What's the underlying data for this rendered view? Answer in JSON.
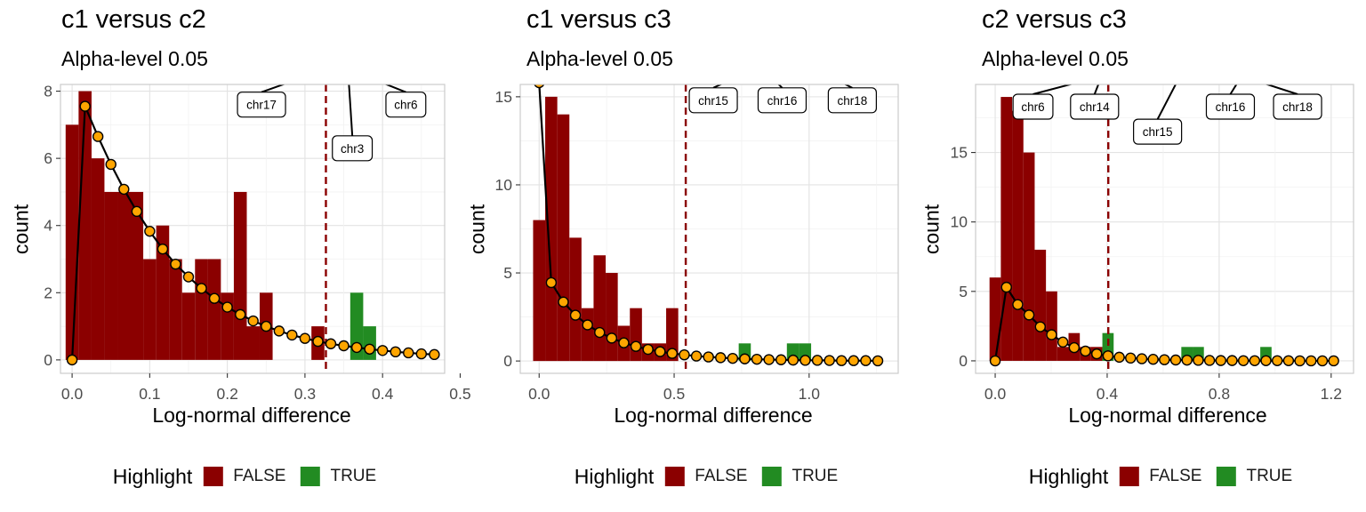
{
  "colors": {
    "false": "#8b0000",
    "true": "#228b22",
    "curve_point": "#ffa500",
    "threshold": "#8b0000"
  },
  "legend": {
    "title": "Highlight",
    "items": [
      {
        "label": "FALSE",
        "color": "#8b0000"
      },
      {
        "label": "TRUE",
        "color": "#228b22"
      }
    ]
  },
  "chart_data": [
    {
      "type": "bar",
      "title": "c1 versus c2",
      "subtitle": "Alpha-level 0.05",
      "xlabel": "Log-normal difference",
      "ylabel": "count",
      "xlim": [
        -0.015,
        0.48
      ],
      "ylim": [
        -0.4,
        8.2
      ],
      "xticks": [
        0,
        0.1,
        0.2,
        0.3,
        0.4,
        0.5
      ],
      "xtick_labels": [
        "0.0",
        "0.1",
        "0.2",
        "0.3",
        "0.4",
        "0.5"
      ],
      "yticks": [
        0,
        2,
        4,
        6,
        8
      ],
      "ytick_labels": [
        "0",
        "2",
        "4",
        "6",
        "8"
      ],
      "threshold": 0.327,
      "bin_width": 0.0167,
      "bins": [
        {
          "x": 0.0,
          "count": 7,
          "highlight": false
        },
        {
          "x": 0.0167,
          "count": 8,
          "highlight": false
        },
        {
          "x": 0.0333,
          "count": 6,
          "highlight": false
        },
        {
          "x": 0.05,
          "count": 5,
          "highlight": false
        },
        {
          "x": 0.0667,
          "count": 5,
          "highlight": false
        },
        {
          "x": 0.0833,
          "count": 5,
          "highlight": false
        },
        {
          "x": 0.1,
          "count": 3,
          "highlight": false
        },
        {
          "x": 0.1167,
          "count": 4,
          "highlight": false
        },
        {
          "x": 0.1333,
          "count": 3,
          "highlight": false
        },
        {
          "x": 0.15,
          "count": 2,
          "highlight": false
        },
        {
          "x": 0.1667,
          "count": 3,
          "highlight": false
        },
        {
          "x": 0.1833,
          "count": 3,
          "highlight": false
        },
        {
          "x": 0.2,
          "count": 2,
          "highlight": false
        },
        {
          "x": 0.2167,
          "count": 5,
          "highlight": false
        },
        {
          "x": 0.2333,
          "count": 1,
          "highlight": false
        },
        {
          "x": 0.25,
          "count": 2,
          "highlight": false
        },
        {
          "x": 0.2667,
          "count": 0,
          "highlight": false
        },
        {
          "x": 0.2833,
          "count": 0,
          "highlight": false
        },
        {
          "x": 0.3,
          "count": 0,
          "highlight": false
        },
        {
          "x": 0.3167,
          "count": 1,
          "highlight": false
        },
        {
          "x": 0.3333,
          "count": 0,
          "highlight": false
        },
        {
          "x": 0.35,
          "count": 0,
          "highlight": false
        },
        {
          "x": 0.3667,
          "count": 2,
          "highlight": true
        },
        {
          "x": 0.3833,
          "count": 1,
          "highlight": true
        }
      ],
      "density_curve": {
        "x": [
          0.0,
          0.0167,
          0.0333,
          0.05,
          0.0667,
          0.0833,
          0.1,
          0.1167,
          0.1333,
          0.15,
          0.1667,
          0.1833,
          0.2,
          0.2167,
          0.2333,
          0.25,
          0.2667,
          0.2833,
          0.3,
          0.3167,
          0.3333,
          0.35,
          0.3667,
          0.3833,
          0.4,
          0.4167,
          0.4333,
          0.45,
          0.4667
        ],
        "y": [
          0,
          7.55,
          6.65,
          5.82,
          5.08,
          4.42,
          3.83,
          3.3,
          2.85,
          2.47,
          2.13,
          1.83,
          1.57,
          1.35,
          1.16,
          1.0,
          0.86,
          0.74,
          0.64,
          0.55,
          0.48,
          0.42,
          0.37,
          0.32,
          0.28,
          0.24,
          0.21,
          0.18,
          0.16
        ]
      },
      "annotations": [
        {
          "label": "chr17",
          "box_x": 0.244,
          "box_y": 7.6,
          "anchor_x": 0.345,
          "anchor_y": 8.8
        },
        {
          "label": "chr6",
          "box_x": 0.43,
          "box_y": 7.6,
          "anchor_x": 0.34,
          "anchor_y": 8.8
        },
        {
          "label": "chr3",
          "box_x": 0.361,
          "box_y": 6.3,
          "anchor_x": 0.355,
          "anchor_y": 8.8
        }
      ]
    },
    {
      "type": "bar",
      "title": "c1 versus c3",
      "subtitle": "Alpha-level 0.05",
      "xlabel": "Log-normal difference",
      "ylabel": "count",
      "xlim": [
        -0.07,
        1.33
      ],
      "ylim": [
        -0.7,
        15.7
      ],
      "xticks": [
        0,
        0.5,
        1.0
      ],
      "xtick_labels": [
        "0.0",
        "0.5",
        "1.0"
      ],
      "yticks": [
        0,
        5,
        10,
        15
      ],
      "ytick_labels": [
        "0",
        "5",
        "10",
        "15"
      ],
      "threshold": 0.543,
      "bin_width": 0.0448,
      "bins": [
        {
          "x": 0.0,
          "count": 8,
          "highlight": false
        },
        {
          "x": 0.0448,
          "count": 15,
          "highlight": false
        },
        {
          "x": 0.0896,
          "count": 14,
          "highlight": false
        },
        {
          "x": 0.1344,
          "count": 7,
          "highlight": false
        },
        {
          "x": 0.1792,
          "count": 3,
          "highlight": false
        },
        {
          "x": 0.224,
          "count": 6,
          "highlight": false
        },
        {
          "x": 0.2688,
          "count": 5,
          "highlight": false
        },
        {
          "x": 0.3136,
          "count": 2,
          "highlight": false
        },
        {
          "x": 0.3584,
          "count": 3,
          "highlight": false
        },
        {
          "x": 0.4032,
          "count": 1,
          "highlight": false
        },
        {
          "x": 0.448,
          "count": 1,
          "highlight": false
        },
        {
          "x": 0.4928,
          "count": 3,
          "highlight": false
        },
        {
          "x": 0.7616,
          "count": 1,
          "highlight": true
        },
        {
          "x": 0.94,
          "count": 1,
          "highlight": true
        },
        {
          "x": 0.985,
          "count": 1,
          "highlight": true
        }
      ],
      "density_curve": {
        "x": [
          0.0,
          0.0448,
          0.0896,
          0.1344,
          0.1792,
          0.224,
          0.2688,
          0.3136,
          0.3584,
          0.4032,
          0.448,
          0.4928,
          0.5376,
          0.5824,
          0.6272,
          0.672,
          0.7168,
          0.7616,
          0.8064,
          0.8512,
          0.896,
          0.9408,
          0.9856,
          1.0304,
          1.0752,
          1.12,
          1.1648,
          1.2096,
          1.2544
        ],
        "y": [
          15.8,
          4.45,
          3.35,
          2.6,
          2.05,
          1.62,
          1.3,
          1.03,
          0.83,
          0.66,
          0.53,
          0.43,
          0.35,
          0.28,
          0.23,
          0.19,
          0.15,
          0.12,
          0.1,
          0.08,
          0.07,
          0.05,
          0.04,
          0.04,
          0.03,
          0.02,
          0.02,
          0.02,
          0.01
        ]
      },
      "annotations": [
        {
          "label": "chr15",
          "box_x": 0.645,
          "box_y": 14.8,
          "anchor_x": 0.8,
          "anchor_y": 16.6
        },
        {
          "label": "chr16",
          "box_x": 0.9,
          "box_y": 14.8,
          "anchor_x": 0.83,
          "anchor_y": 16.6
        },
        {
          "label": "chr18",
          "box_x": 1.16,
          "box_y": 14.8,
          "anchor_x": 1.02,
          "anchor_y": 16.6
        }
      ]
    },
    {
      "type": "bar",
      "title": "c2 versus c3",
      "subtitle": "Alpha-level 0.05",
      "xlabel": "Log-normal difference",
      "ylabel": "count",
      "xlim": [
        -0.07,
        1.28
      ],
      "ylim": [
        -0.9,
        19.9
      ],
      "xticks": [
        0,
        0.4,
        0.8,
        1.2
      ],
      "xtick_labels": [
        "0.0",
        "0.4",
        "0.8",
        "1.2"
      ],
      "yticks": [
        0,
        5,
        10,
        15
      ],
      "ytick_labels": [
        "0",
        "5",
        "10",
        "15"
      ],
      "threshold": 0.404,
      "bin_width": 0.0403,
      "bins": [
        {
          "x": 0.0,
          "count": 6,
          "highlight": false
        },
        {
          "x": 0.0403,
          "count": 19,
          "highlight": false
        },
        {
          "x": 0.0806,
          "count": 18,
          "highlight": false
        },
        {
          "x": 0.1209,
          "count": 15,
          "highlight": false
        },
        {
          "x": 0.1612,
          "count": 8,
          "highlight": false
        },
        {
          "x": 0.2015,
          "count": 5,
          "highlight": false
        },
        {
          "x": 0.2418,
          "count": 1,
          "highlight": false
        },
        {
          "x": 0.2821,
          "count": 2,
          "highlight": false
        },
        {
          "x": 0.3224,
          "count": 1,
          "highlight": false
        },
        {
          "x": 0.3627,
          "count": 1,
          "highlight": false
        },
        {
          "x": 0.403,
          "count": 2,
          "highlight": true
        },
        {
          "x": 0.685,
          "count": 1,
          "highlight": true
        },
        {
          "x": 0.7253,
          "count": 1,
          "highlight": true
        },
        {
          "x": 0.967,
          "count": 1,
          "highlight": true
        }
      ],
      "density_curve": {
        "x": [
          0.0,
          0.0403,
          0.0806,
          0.1209,
          0.1612,
          0.2015,
          0.2418,
          0.2821,
          0.3224,
          0.3627,
          0.403,
          0.4433,
          0.4836,
          0.5239,
          0.5642,
          0.6045,
          0.6448,
          0.6851,
          0.7254,
          0.7657,
          0.806,
          0.8463,
          0.8866,
          0.9269,
          0.9672,
          1.0075,
          1.0478,
          1.0881,
          1.1284,
          1.1687,
          1.209
        ],
        "y": [
          0,
          5.3,
          4.05,
          3.3,
          2.45,
          1.88,
          1.35,
          0.95,
          0.7,
          0.5,
          0.36,
          0.26,
          0.2,
          0.15,
          0.11,
          0.08,
          0.06,
          0.05,
          0.04,
          0.03,
          0.02,
          0.02,
          0.01,
          0.01,
          0.01,
          0.01,
          0.01,
          0.0,
          0.0,
          0.0,
          0.0
        ]
      },
      "annotations": [
        {
          "label": "chr6",
          "box_x": 0.135,
          "box_y": 18.3,
          "anchor_x": 0.38,
          "anchor_y": 20.5
        },
        {
          "label": "chr14",
          "box_x": 0.355,
          "box_y": 18.3,
          "anchor_x": 0.38,
          "anchor_y": 20.5
        },
        {
          "label": "chr15",
          "box_x": 0.58,
          "box_y": 16.5,
          "anchor_x": 0.66,
          "anchor_y": 20.5
        },
        {
          "label": "chr16",
          "box_x": 0.84,
          "box_y": 18.3,
          "anchor_x": 0.88,
          "anchor_y": 20.5
        },
        {
          "label": "chr18",
          "box_x": 1.08,
          "box_y": 18.3,
          "anchor_x": 0.88,
          "anchor_y": 20.5
        }
      ]
    }
  ]
}
